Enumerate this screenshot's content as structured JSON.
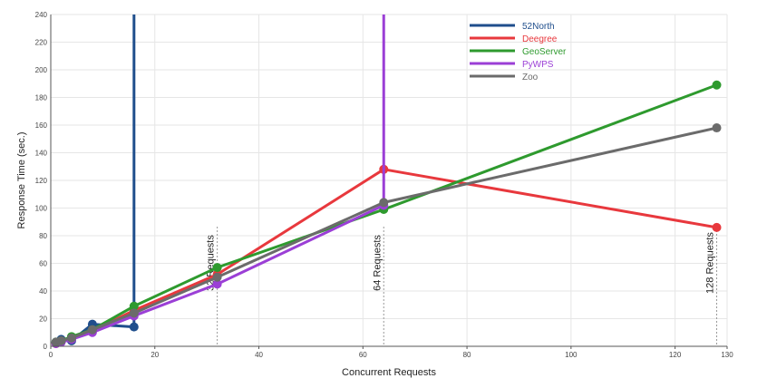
{
  "chart_data": {
    "type": "line",
    "xlabel": "Concurrent Requests",
    "ylabel": "Response Time (sec.)",
    "xlim": [
      0,
      130
    ],
    "ylim": [
      0,
      240
    ],
    "xticks": [
      0,
      20,
      40,
      60,
      80,
      100,
      120,
      130
    ],
    "yticks": [
      0,
      20,
      40,
      60,
      80,
      100,
      120,
      140,
      160,
      180,
      200,
      220,
      240
    ],
    "grid": true,
    "legend_position": "top-right",
    "series": [
      {
        "name": "52North",
        "color": "#1f4e8c",
        "x": [
          1,
          2,
          4,
          8,
          16
        ],
        "y": [
          3,
          5,
          4,
          16,
          14
        ],
        "vertical_line_x": 16
      },
      {
        "name": "Deegree",
        "color": "#e8383d",
        "x": [
          1,
          2,
          4,
          8,
          16,
          32,
          64,
          128
        ],
        "y": [
          2,
          4,
          6,
          11,
          26,
          52,
          128,
          86
        ]
      },
      {
        "name": "GeoServer",
        "color": "#2e9a2e",
        "x": [
          1,
          2,
          4,
          8,
          16,
          32,
          64,
          128
        ],
        "y": [
          3,
          4,
          7,
          12,
          29,
          57,
          99,
          189
        ]
      },
      {
        "name": "PyWPS",
        "color": "#9b3fd6",
        "x": [
          1,
          2,
          4,
          8,
          16,
          32,
          64
        ],
        "y": [
          2,
          3,
          5,
          10,
          22,
          45,
          102
        ],
        "vertical_line_x": 64
      },
      {
        "name": "Zoo",
        "color": "#6b6b6b",
        "x": [
          1,
          2,
          4,
          8,
          16,
          32,
          64,
          128
        ],
        "y": [
          3,
          4,
          6,
          12,
          24,
          50,
          104,
          158
        ]
      }
    ],
    "annotations": [
      {
        "text": "32 Requests",
        "x": 32
      },
      {
        "text": "64 Requests",
        "x": 64
      },
      {
        "text": "128 Requests",
        "x": 128
      }
    ]
  }
}
